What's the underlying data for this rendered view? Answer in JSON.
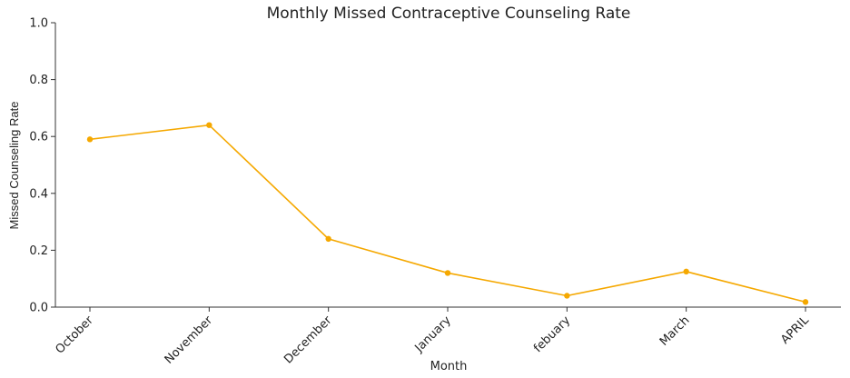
{
  "chart_data": {
    "type": "line",
    "title": "Monthly Missed Contraceptive Counseling Rate",
    "xlabel": "Month",
    "ylabel": "Missed Counseling Rate",
    "categories": [
      "October",
      "November",
      "December",
      "January",
      "febuary",
      "March",
      "APRIL"
    ],
    "series": [
      {
        "values": [
          0.59,
          0.64,
          0.24,
          0.12,
          0.04,
          0.125,
          0.018
        ]
      }
    ],
    "ylim": [
      0,
      1.0
    ],
    "yticks": [
      "0.0",
      "0.2",
      "0.4",
      "0.6",
      "0.8",
      "1.0"
    ],
    "grid": false,
    "line_color": "#f5a800"
  }
}
